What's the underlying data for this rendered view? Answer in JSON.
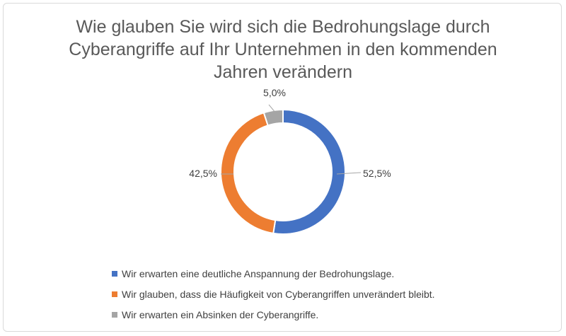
{
  "chart_data": {
    "type": "pie",
    "variant": "donut",
    "title_lines": [
      "Wie glauben Sie wird sich die Bedrohungslage durch",
      "Cyberangriffe auf Ihr Unternehmen in den kommenden",
      "Jahren verändern"
    ],
    "legend_position": "bottom",
    "slices": [
      {
        "name": "Wir erwarten eine deutliche Anspannung der Bedrohungslage.",
        "value": 52.5,
        "label": "52,5%",
        "color": "#4472C4"
      },
      {
        "name": "Wir glauben, dass die Häufigkeit von Cyberangriffen unverändert bleibt.",
        "value": 42.5,
        "label": "42,5%",
        "color": "#ED7D31"
      },
      {
        "name": "Wir erwarten ein Absinken der Cyberangriffe.",
        "value": 5.0,
        "label": "5,0%",
        "color": "#A5A5A5"
      }
    ]
  }
}
